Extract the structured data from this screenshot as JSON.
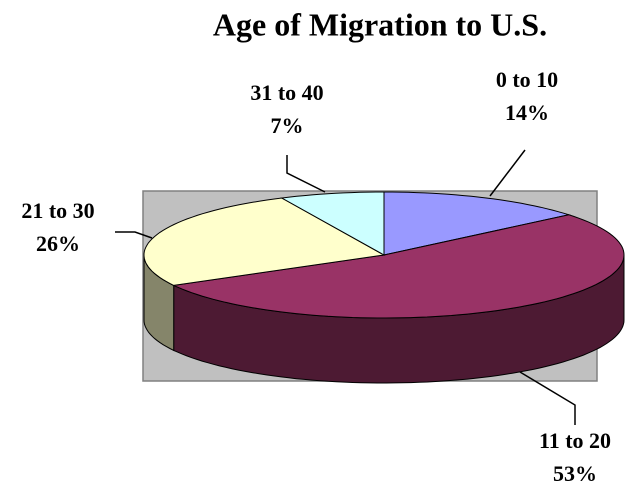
{
  "chart_data": {
    "type": "pie",
    "title": "Age of Migration to U.S.",
    "categories": [
      "0 to 10",
      "11 to 20",
      "21 to 30",
      "31 to 40"
    ],
    "values": [
      14,
      53,
      26,
      7
    ],
    "value_labels": [
      "14%",
      "53%",
      "26%",
      "7%"
    ],
    "colors": [
      "#9999ff",
      "#993366",
      "#ffffcc",
      "#ccffff"
    ]
  }
}
